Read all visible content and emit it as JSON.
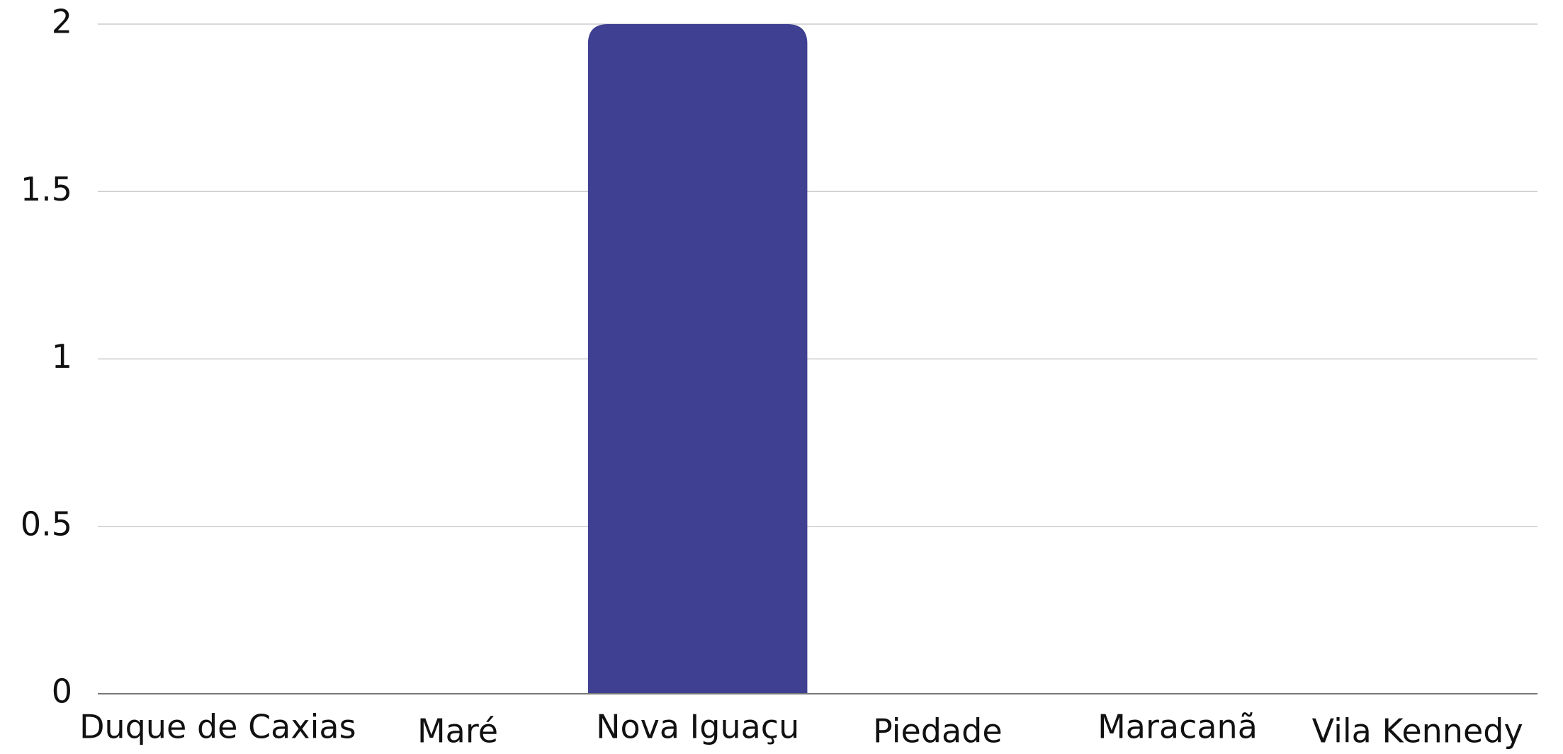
{
  "chart_data": {
    "type": "bar",
    "categories": [
      "Duque de Caxias",
      "Maré",
      "Nova Iguaçu",
      "Piedade",
      "Maracanã",
      "Vila Kennedy"
    ],
    "values": [
      0,
      0,
      2,
      0,
      0,
      0
    ],
    "color": "#3f4092",
    "ylim": [
      0,
      2
    ],
    "yticks": [
      0,
      0.5,
      1,
      1.5,
      2
    ],
    "grid": true
  }
}
